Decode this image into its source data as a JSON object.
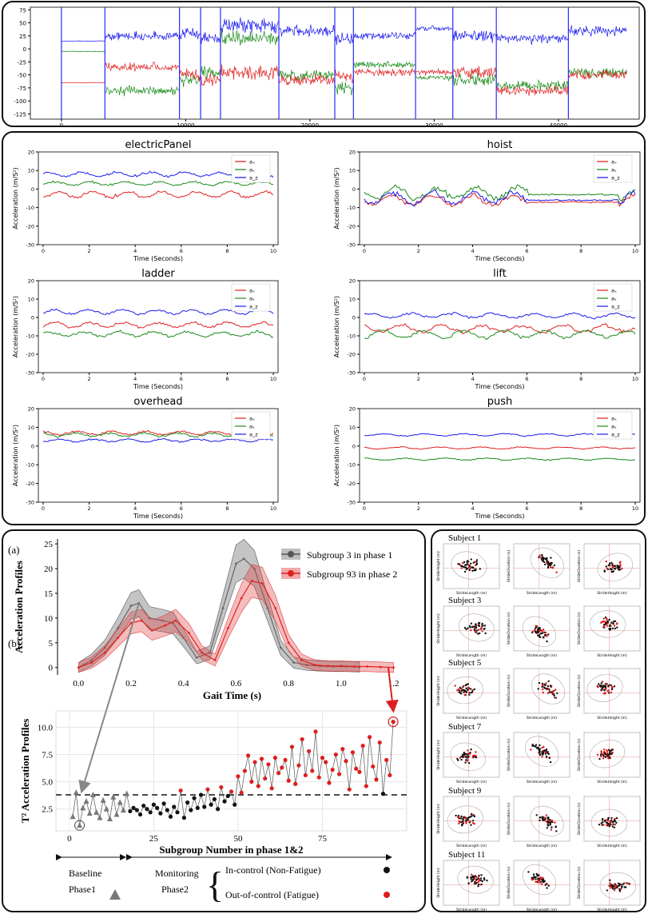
{
  "top_strip": {
    "y_ticks": [
      75,
      50,
      25,
      0,
      -25,
      -50,
      -75,
      -100,
      -125
    ],
    "x_ticks": [
      0,
      10000,
      20000,
      30000,
      40000
    ],
    "ylim": [
      -135,
      80
    ],
    "xlim": [
      -2500,
      46500
    ],
    "boundaries": [
      0,
      3500,
      9500,
      11200,
      12800,
      17500,
      22000,
      23500,
      28500,
      31500,
      35000,
      40800
    ]
  },
  "chart_data": [
    {
      "type": "line",
      "panel": "electricPanel",
      "title": "electricPanel",
      "xlabel": "Time (Seconds)",
      "ylabel": "Acceleration (m/S²)",
      "xlim": [
        0,
        10
      ],
      "ylim": [
        -30,
        20
      ],
      "x_ticks": [
        0,
        2,
        4,
        6,
        8,
        10
      ],
      "y_ticks": [
        20,
        10,
        0,
        -10,
        -20,
        -30
      ],
      "legend": [
        "aₓ",
        "aᵧ",
        "a_z"
      ],
      "series": [
        {
          "name": "aₓ",
          "color": "#e02020",
          "mean": -3,
          "amp": 2.5
        },
        {
          "name": "aᵧ",
          "color": "#1a8a1a",
          "mean": 3,
          "amp": 1.5
        },
        {
          "name": "a_z",
          "color": "#1a1aee",
          "mean": 8,
          "amp": 1.8
        }
      ]
    },
    {
      "type": "line",
      "panel": "hoist",
      "title": "hoist",
      "xlabel": "Time (Seconds)",
      "ylabel": "Acceleration (m/S²)",
      "xlim": [
        0,
        10
      ],
      "ylim": [
        -30,
        20
      ],
      "x_ticks": [
        0,
        2,
        4,
        6,
        8,
        10
      ],
      "y_ticks": [
        20,
        10,
        0,
        -10,
        -20,
        -30
      ],
      "legend": [
        "aₓ",
        "aᵧ",
        "a_z"
      ],
      "series": [
        {
          "name": "aₓ",
          "color": "#e02020",
          "mean": -6,
          "amp": 4
        },
        {
          "name": "aᵧ",
          "color": "#1a8a1a",
          "mean": -2,
          "amp": 5
        },
        {
          "name": "a_z",
          "color": "#1a1aee",
          "mean": -5,
          "amp": 5
        }
      ]
    },
    {
      "type": "line",
      "panel": "ladder",
      "title": "ladder",
      "xlabel": "Time (Seconds)",
      "ylabel": "Acceleration (m/S²)",
      "xlim": [
        0,
        10
      ],
      "ylim": [
        -30,
        20
      ],
      "x_ticks": [
        0,
        2,
        4,
        6,
        8,
        10
      ],
      "y_ticks": [
        20,
        10,
        0,
        -10,
        -20,
        -30
      ],
      "legend": [
        "aₓ",
        "aᵧ",
        "a_z"
      ],
      "series": [
        {
          "name": "aₓ",
          "color": "#e02020",
          "mean": -4,
          "amp": 2
        },
        {
          "name": "aᵧ",
          "color": "#1a8a1a",
          "mean": -9,
          "amp": 2
        },
        {
          "name": "a_z",
          "color": "#1a1aee",
          "mean": 3,
          "amp": 2
        }
      ]
    },
    {
      "type": "line",
      "panel": "lift",
      "title": "lift",
      "xlabel": "Time (Seconds)",
      "ylabel": "Acceleration (m/S²)",
      "xlim": [
        0,
        10
      ],
      "ylim": [
        -30,
        20
      ],
      "x_ticks": [
        0,
        2,
        4,
        6,
        8,
        10
      ],
      "y_ticks": [
        20,
        10,
        0,
        -10,
        -20,
        -30
      ],
      "legend": [
        "aₓ",
        "aᵧ",
        "a_z"
      ],
      "series": [
        {
          "name": "aₓ",
          "color": "#e02020",
          "mean": -6,
          "amp": 3
        },
        {
          "name": "aᵧ",
          "color": "#1a8a1a",
          "mean": -9,
          "amp": 3
        },
        {
          "name": "a_z",
          "color": "#1a1aee",
          "mean": 1,
          "amp": 2
        }
      ]
    },
    {
      "type": "line",
      "panel": "overhead",
      "title": "overhead",
      "xlabel": "Time (Seconds)",
      "ylabel": "Acceleration (m/S²)",
      "xlim": [
        0,
        10
      ],
      "ylim": [
        -30,
        20
      ],
      "x_ticks": [
        0,
        2,
        4,
        6,
        8,
        10
      ],
      "y_ticks": [
        20,
        10,
        0,
        -10,
        -20,
        -30
      ],
      "legend": [
        "aₓ",
        "aᵧ",
        "a_z"
      ],
      "series": [
        {
          "name": "aₓ",
          "color": "#e02020",
          "mean": 7,
          "amp": 1.5
        },
        {
          "name": "aᵧ",
          "color": "#1a8a1a",
          "mean": 6,
          "amp": 1.5
        },
        {
          "name": "a_z",
          "color": "#1a1aee",
          "mean": 3,
          "amp": 1.2
        }
      ]
    },
    {
      "type": "line",
      "panel": "push",
      "title": "push",
      "xlabel": "Time (Seconds)",
      "ylabel": "Acceleration (m/S²)",
      "xlim": [
        0,
        10
      ],
      "ylim": [
        -30,
        20
      ],
      "x_ticks": [
        0,
        2,
        4,
        6,
        8,
        10
      ],
      "y_ticks": [
        20,
        10,
        0,
        -10,
        -20,
        -30
      ],
      "legend": [
        "aₓ",
        "aᵧ",
        "a_z"
      ],
      "series": [
        {
          "name": "aₓ",
          "color": "#e02020",
          "mean": -1,
          "amp": 0.8
        },
        {
          "name": "aᵧ",
          "color": "#1a8a1a",
          "mean": -7,
          "amp": 0.8
        },
        {
          "name": "a_z",
          "color": "#1a1aee",
          "mean": 6,
          "amp": 1
        }
      ]
    },
    {
      "type": "line",
      "panel": "gait",
      "label": "(a)",
      "xlabel": "Gait Time (s)",
      "ylabel": "Acceleration Profiles",
      "xlim": [
        -0.08,
        1.25
      ],
      "ylim": [
        -1.5,
        26
      ],
      "x_ticks": [
        0.0,
        0.2,
        0.4,
        0.6,
        0.8,
        1.0,
        1.2
      ],
      "y_ticks": [
        0,
        5,
        10,
        15,
        20,
        25
      ],
      "series": [
        {
          "name": "Subgroup 3 in phase 1",
          "color": "#666666",
          "band": "#555555",
          "x": [
            0.0,
            0.05,
            0.1,
            0.15,
            0.2,
            0.23,
            0.27,
            0.32,
            0.36,
            0.4,
            0.45,
            0.5,
            0.55,
            0.6,
            0.63,
            0.67,
            0.72,
            0.77,
            0.82,
            0.87,
            0.92,
            0.97,
            1.02,
            1.07
          ],
          "y": [
            0,
            1.5,
            4,
            8,
            12.5,
            13,
            10,
            9.5,
            9,
            6,
            2,
            3,
            12,
            21,
            22,
            20,
            12,
            4,
            1,
            0.5,
            0.3,
            0.2,
            0.2,
            0.1
          ],
          "band_half": 2
        },
        {
          "name": "Subgroup 93 in phase 2",
          "color": "#e02020",
          "band": "#e04040",
          "x": [
            0.0,
            0.05,
            0.1,
            0.15,
            0.2,
            0.24,
            0.28,
            0.33,
            0.37,
            0.42,
            0.47,
            0.52,
            0.57,
            0.62,
            0.66,
            0.7,
            0.75,
            0.8,
            0.85,
            0.9,
            0.95,
            1.0,
            1.05,
            1.1,
            1.15,
            1.2
          ],
          "y": [
            0,
            1,
            3,
            6,
            9,
            9.5,
            7.5,
            8.5,
            9.5,
            7,
            3,
            1.5,
            8,
            14,
            17.5,
            17,
            12,
            5,
            1.5,
            0.5,
            0.3,
            0.3,
            0.2,
            0.2,
            0.1,
            0
          ],
          "band_half": 2
        }
      ]
    },
    {
      "type": "scatter",
      "panel": "t2",
      "label": "(b)",
      "xlabel": "Subgroup Number in phase 1&2",
      "ylabel": "T² Acceleration Profiles",
      "xlim": [
        -4,
        100
      ],
      "ylim": [
        0.5,
        11.5
      ],
      "x_ticks": [
        0,
        25,
        50,
        75
      ],
      "y_ticks": [
        2.5,
        5.0,
        7.5,
        10.0
      ],
      "threshold": 3.8,
      "phase1": [
        1.8,
        4.0,
        1.0,
        2.6,
        3.2,
        2.1,
        3.8,
        2.2,
        1.7,
        3.3,
        2.5,
        1.6,
        3.6,
        2.0,
        3.1,
        2.4,
        3.9
      ],
      "phase2_values": [
        2.3,
        2.6,
        2.4,
        2.0,
        2.8,
        2.5,
        2.2,
        2.9,
        2.6,
        2.1,
        3.0,
        2.4,
        1.8,
        2.7,
        2.2,
        4.2,
        1.7,
        3.1,
        2.4,
        3.5,
        2.6,
        3.8,
        2.7,
        4.3,
        2.9,
        3.4,
        2.5,
        4.5,
        3.2,
        3.7,
        4.1,
        2.9,
        5.5,
        4.0,
        6.0,
        7.4,
        5.0,
        6.8,
        4.6,
        7.1,
        5.3,
        6.6,
        4.4,
        7.2,
        5.8,
        6.3,
        7.0,
        5.1,
        8.2,
        4.8,
        6.5,
        8.9,
        5.6,
        7.8,
        6.0,
        9.6,
        5.4,
        7.2,
        6.8,
        4.9,
        6.1,
        7.5,
        5.7,
        8.0,
        6.9,
        4.3,
        7.7,
        6.2,
        5.9,
        8.3,
        4.6,
        9.1,
        6.4,
        5.2,
        8.6,
        3.9,
        7.0
      ],
      "phase2_control": [
        1,
        1,
        1,
        1,
        1,
        1,
        1,
        1,
        1,
        1,
        1,
        1,
        1,
        1,
        1,
        0,
        1,
        1,
        1,
        1,
        1,
        1,
        1,
        0,
        1,
        1,
        1,
        0,
        1,
        1,
        0,
        1,
        0,
        0,
        0,
        0,
        0,
        0,
        0,
        0,
        0,
        0,
        0,
        0,
        0,
        0,
        0,
        0,
        0,
        0,
        0,
        0,
        0,
        0,
        0,
        0,
        0,
        0,
        0,
        0,
        0,
        0,
        0,
        0,
        0,
        0,
        0,
        0,
        0,
        0,
        0,
        0,
        0,
        0,
        0,
        1,
        0
      ],
      "phase2_tail_red": [
        5.6,
        10.5
      ]
    }
  ],
  "legend_gait": {
    "item1": "Subgroup 3 in phase 1",
    "item2": "Subgroup 93 in phase 2"
  },
  "phase_legend": {
    "baseline": "Baseline",
    "phase1": "Phase1",
    "monitoring": "Monitoring",
    "phase2": "Phase2",
    "in_control": "In-control (Non-Fatigue)",
    "out_control": "Out-of-control (Fatigue)"
  },
  "subjects": {
    "titles": [
      "Subject 1",
      "Subject 3",
      "Subject 5",
      "Subject 7",
      "Subject 9",
      "Subject 11"
    ],
    "xlabels": [
      "StrideLength (m)",
      "StrideLength (m)",
      "StrideHeight (m)"
    ],
    "ylabels": [
      "StrideHeight (m)",
      "StrideDuration (s)",
      "StrideDuration (s)"
    ]
  }
}
